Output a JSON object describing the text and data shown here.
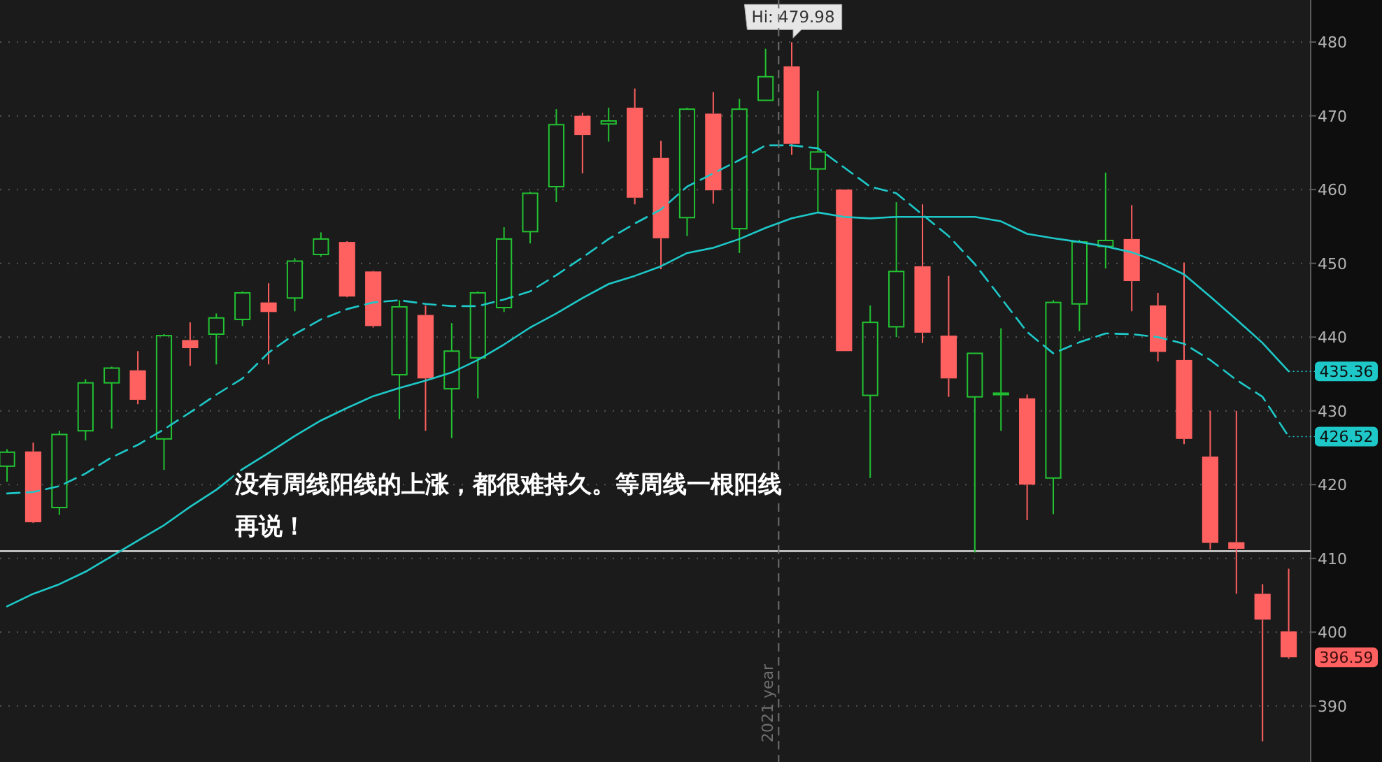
{
  "chart_data": {
    "type": "candlestick",
    "tick_labels": "y",
    "grid": "y",
    "ylim": [
      382.4,
      485.7
    ],
    "yticks": [
      390,
      400,
      410,
      420,
      430,
      440,
      450,
      460,
      470,
      480
    ],
    "categories": [
      null,
      null,
      null,
      null,
      null,
      null,
      null,
      null,
      null,
      null,
      null,
      null,
      null,
      null,
      null,
      null,
      null,
      null,
      null,
      null,
      null,
      null,
      null,
      null,
      null,
      null,
      null,
      null,
      null,
      null,
      null,
      null,
      null,
      null,
      null,
      null,
      null,
      null,
      null,
      null,
      null,
      null,
      null,
      null,
      null,
      null,
      null,
      null,
      null,
      null
    ],
    "ohlc": [
      [
        422.5,
        424.8,
        420.4,
        424.4
      ],
      [
        424.5,
        425.7,
        414.8,
        414.9
      ],
      [
        416.9,
        427.3,
        415.9,
        426.8
      ],
      [
        427.3,
        434.3,
        426.0,
        433.8
      ],
      [
        433.8,
        436.0,
        427.6,
        435.8
      ],
      [
        435.5,
        438.1,
        430.9,
        431.5
      ],
      [
        426.2,
        440.4,
        422.0,
        440.2
      ],
      [
        439.6,
        442.0,
        436.1,
        438.5
      ],
      [
        440.4,
        443.2,
        436.3,
        442.6
      ],
      [
        442.4,
        446.2,
        441.5,
        446.0
      ],
      [
        444.7,
        447.3,
        436.3,
        443.4
      ],
      [
        445.3,
        450.7,
        443.5,
        450.3
      ],
      [
        451.2,
        454.2,
        450.9,
        453.3
      ],
      [
        452.9,
        453.0,
        445.4,
        445.5
      ],
      [
        448.9,
        449.0,
        441.3,
        441.5
      ],
      [
        434.9,
        445.0,
        428.9,
        444.1
      ],
      [
        443.0,
        444.3,
        427.3,
        434.4
      ],
      [
        433.0,
        441.9,
        426.3,
        438.1
      ],
      [
        437.2,
        446.2,
        431.7,
        446.0
      ],
      [
        444.0,
        454.9,
        443.4,
        453.3
      ],
      [
        454.3,
        459.7,
        452.7,
        459.5
      ],
      [
        460.4,
        470.9,
        458.3,
        468.8
      ],
      [
        470.0,
        470.4,
        462.2,
        467.4
      ],
      [
        468.9,
        471.1,
        466.5,
        469.3
      ],
      [
        471.1,
        473.7,
        458.0,
        458.9
      ],
      [
        464.3,
        466.6,
        449.2,
        453.4
      ],
      [
        456.2,
        471.1,
        453.7,
        470.9
      ],
      [
        470.3,
        473.2,
        458.1,
        459.9
      ],
      [
        454.7,
        472.3,
        451.4,
        470.9
      ],
      [
        472.1,
        479.1,
        472.1,
        475.3
      ],
      [
        476.7,
        479.98,
        464.7,
        466.2
      ],
      [
        462.8,
        473.4,
        457.0,
        465.1
      ],
      [
        460.0,
        460.0,
        438.1,
        438.1
      ],
      [
        432.1,
        444.3,
        420.9,
        442.0
      ],
      [
        441.4,
        458.3,
        440.0,
        448.9
      ],
      [
        449.6,
        458.0,
        439.2,
        440.6
      ],
      [
        440.2,
        448.3,
        431.9,
        434.4
      ],
      [
        431.9,
        437.8,
        410.8,
        437.8
      ],
      [
        432.2,
        441.2,
        427.3,
        432.4
      ],
      [
        431.7,
        432.2,
        415.2,
        420.0
      ],
      [
        420.9,
        445.0,
        416.0,
        444.7
      ],
      [
        444.5,
        453.2,
        440.8,
        452.9
      ],
      [
        452.3,
        462.3,
        449.3,
        453.1
      ],
      [
        453.3,
        457.9,
        443.5,
        447.6
      ],
      [
        444.3,
        446.0,
        436.7,
        438.0
      ],
      [
        436.9,
        450.1,
        425.5,
        426.2
      ],
      [
        423.8,
        430.0,
        411.2,
        412.1
      ],
      [
        412.2,
        430.0,
        405.2,
        411.3
      ],
      [
        405.2,
        406.5,
        385.2,
        401.7
      ],
      [
        400.1,
        408.6,
        396.4,
        396.59
      ]
    ],
    "colors": [
      "#22c232",
      "#ff6060",
      "#22c232",
      "#22c232",
      "#22c232",
      "#ff6060",
      "#22c232",
      "#ff6060",
      "#22c232",
      "#22c232",
      "#ff6060",
      "#22c232",
      "#22c232",
      "#ff6060",
      "#ff6060",
      "#22c232",
      "#ff6060",
      "#22c232",
      "#22c232",
      "#22c232",
      "#22c232",
      "#22c232",
      "#ff6060",
      "#22c232",
      "#ff6060",
      "#ff6060",
      "#22c232",
      "#ff6060",
      "#22c232",
      "#22c232",
      "#ff6060",
      "#22c232",
      "#ff6060",
      "#22c232",
      "#22c232",
      "#ff6060",
      "#ff6060",
      "#22c232",
      "#22c232",
      "#ff6060",
      "#22c232",
      "#22c232",
      "#22c232",
      "#ff6060",
      "#ff6060",
      "#ff6060",
      "#ff6060",
      "#ff6060",
      "#ff6060",
      "#ff6060"
    ],
    "value_labels": [
      null,
      null,
      null,
      null,
      null,
      null,
      null,
      null,
      null,
      null,
      null,
      null,
      null,
      null,
      null,
      null,
      null,
      null,
      null,
      null,
      null,
      null,
      null,
      null,
      null,
      null,
      null,
      null,
      null,
      null,
      null,
      null,
      null,
      null,
      null,
      null,
      null,
      null,
      null,
      null,
      null,
      null,
      null,
      null,
      null,
      null,
      null,
      null,
      null,
      "396.59"
    ],
    "series": [
      {
        "type": "line",
        "color": "#1ec8c8",
        "line_style": "solid",
        "values": [
          403.5,
          405.2,
          406.5,
          408.2,
          410.3,
          412.4,
          414.5,
          417.0,
          419.3,
          422.1,
          424.3,
          426.6,
          428.7,
          430.4,
          432.0,
          433.1,
          434.1,
          435.2,
          436.9,
          439.0,
          441.3,
          443.2,
          445.3,
          447.2,
          448.3,
          449.6,
          451.4,
          452.1,
          453.3,
          454.8,
          456.1,
          456.9,
          456.3,
          456.1,
          456.3,
          456.3,
          456.3,
          456.3,
          455.7,
          454.0,
          453.4,
          452.9,
          452.3,
          451.5,
          450.2,
          448.5,
          445.5,
          442.4,
          439.2,
          435.36
        ],
        "value_labels": [
          null,
          null,
          null,
          null,
          null,
          null,
          null,
          null,
          null,
          null,
          null,
          null,
          null,
          null,
          null,
          null,
          null,
          null,
          null,
          null,
          null,
          null,
          null,
          null,
          null,
          null,
          null,
          null,
          null,
          null,
          null,
          null,
          null,
          null,
          null,
          null,
          null,
          null,
          null,
          null,
          null,
          null,
          null,
          null,
          null,
          null,
          null,
          null,
          null,
          "435.36"
        ]
      },
      {
        "type": "line",
        "color": "#1ec8c8",
        "line_style": "dashed",
        "values": [
          418.8,
          419.0,
          419.8,
          421.5,
          423.7,
          425.4,
          427.5,
          429.8,
          432.2,
          434.4,
          437.9,
          440.4,
          442.4,
          443.8,
          444.7,
          445.0,
          444.5,
          444.2,
          444.2,
          445.1,
          446.2,
          448.4,
          450.8,
          453.3,
          455.4,
          457.3,
          460.4,
          462.2,
          464.0,
          466.0,
          466.0,
          465.6,
          463.0,
          460.4,
          459.5,
          456.6,
          453.7,
          449.9,
          445.3,
          440.7,
          437.8,
          439.3,
          440.5,
          440.4,
          440.0,
          439.1,
          436.9,
          434.2,
          431.9,
          426.52
        ],
        "value_labels": [
          null,
          null,
          null,
          null,
          null,
          null,
          null,
          null,
          null,
          null,
          null,
          null,
          null,
          null,
          null,
          null,
          null,
          null,
          null,
          null,
          null,
          null,
          null,
          null,
          null,
          null,
          null,
          null,
          null,
          null,
          null,
          null,
          null,
          null,
          null,
          null,
          null,
          null,
          null,
          null,
          null,
          null,
          null,
          null,
          null,
          null,
          null,
          null,
          null,
          "426.52"
        ]
      }
    ],
    "ref_lines": [
      {
        "axis": "y",
        "value": 411,
        "line_style": "solid",
        "color": "#ffffff"
      }
    ],
    "annotations": [
      {
        "text": "Hi: 479.98",
        "y": 479.98
      },
      "2021 year",
      "没有周线阳线的上涨，都很难持久。等周线一根阳线再说！"
    ]
  }
}
